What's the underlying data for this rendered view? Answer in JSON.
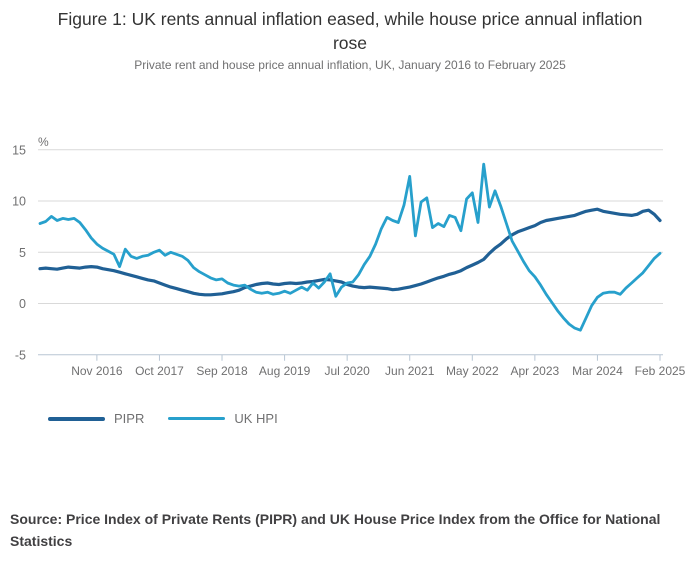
{
  "figure": {
    "title": "Figure 1: UK rents annual inflation eased, while house price annual inflation rose",
    "subtitle": "Private rent and house price annual inflation, UK, January 2016 to February 2025",
    "source": "Source: Price Index of Private Rents (PIPR) and UK House Price Index from the Office for National Statistics"
  },
  "chart_data": {
    "type": "line",
    "title": "Figure 1: UK rents annual inflation eased, while house price annual inflation rose",
    "subtitle": "Private rent and house price annual inflation, UK, January 2016 to February 2025",
    "unit_label": "%",
    "x_start": "Jan 2016",
    "x_end": "Feb 2025",
    "x_tick_labels": [
      "Nov 2016",
      "Oct 2017",
      "Sep 2018",
      "Aug 2019",
      "Jul 2020",
      "Jun 2021",
      "May 2022",
      "Apr 2023",
      "Mar 2024",
      "Feb 2025"
    ],
    "x_tick_month_indices": [
      10,
      21,
      32,
      43,
      54,
      65,
      76,
      87,
      98,
      109
    ],
    "y_ticks": [
      15,
      10,
      5,
      0,
      -5
    ],
    "ylim": [
      -5,
      15
    ],
    "grid": "horizontal",
    "gridline_color": "#d9d9d9",
    "axis_line_color": "#b8c6d4",
    "axis_text_color": "#707071",
    "legend_position": "bottom-left",
    "series": [
      {
        "name": "PIPR",
        "color": "#206095",
        "values": [
          3.4,
          3.45,
          3.4,
          3.35,
          3.45,
          3.55,
          3.5,
          3.45,
          3.55,
          3.6,
          3.55,
          3.4,
          3.3,
          3.2,
          3.05,
          2.9,
          2.75,
          2.6,
          2.45,
          2.3,
          2.2,
          2.0,
          1.8,
          1.6,
          1.45,
          1.3,
          1.15,
          1.0,
          0.9,
          0.85,
          0.85,
          0.9,
          0.95,
          1.05,
          1.15,
          1.3,
          1.55,
          1.7,
          1.85,
          1.95,
          2.0,
          1.9,
          1.85,
          1.95,
          2.0,
          1.95,
          2.0,
          2.1,
          2.15,
          2.25,
          2.35,
          2.3,
          2.2,
          2.1,
          1.85,
          1.7,
          1.6,
          1.55,
          1.6,
          1.55,
          1.5,
          1.45,
          1.35,
          1.4,
          1.5,
          1.6,
          1.75,
          1.9,
          2.1,
          2.3,
          2.5,
          2.65,
          2.85,
          3.0,
          3.2,
          3.5,
          3.75,
          4.0,
          4.3,
          4.9,
          5.4,
          5.8,
          6.3,
          6.7,
          7.0,
          7.2,
          7.4,
          7.6,
          7.9,
          8.1,
          8.2,
          8.3,
          8.4,
          8.5,
          8.6,
          8.8,
          9.0,
          9.1,
          9.2,
          9.0,
          8.9,
          8.8,
          8.7,
          8.65,
          8.6,
          8.7,
          9.0,
          9.1,
          8.7,
          8.1
        ]
      },
      {
        "name": "UK HPI",
        "color": "#27a0cc",
        "values": [
          7.8,
          8.0,
          8.5,
          8.1,
          8.3,
          8.2,
          8.3,
          7.9,
          7.2,
          6.4,
          5.8,
          5.4,
          5.1,
          4.8,
          3.6,
          5.3,
          4.6,
          4.4,
          4.6,
          4.7,
          5.0,
          5.2,
          4.7,
          5.0,
          4.8,
          4.6,
          4.2,
          3.5,
          3.1,
          2.8,
          2.5,
          2.3,
          2.4,
          2.0,
          1.8,
          1.7,
          1.8,
          1.4,
          1.1,
          1.0,
          1.1,
          0.9,
          1.0,
          1.2,
          1.0,
          1.3,
          1.6,
          1.3,
          2.0,
          1.5,
          2.1,
          2.9,
          0.7,
          1.6,
          2.0,
          2.1,
          2.8,
          3.8,
          4.6,
          5.8,
          7.3,
          8.4,
          8.1,
          7.9,
          9.6,
          12.4,
          6.6,
          9.9,
          10.3,
          7.4,
          7.8,
          7.5,
          8.6,
          8.4,
          7.1,
          10.2,
          10.8,
          7.9,
          13.6,
          9.4,
          11.0,
          9.5,
          7.8,
          6.1,
          5.1,
          4.1,
          3.2,
          2.6,
          1.8,
          0.9,
          0.1,
          -0.7,
          -1.4,
          -2.0,
          -2.4,
          -2.6,
          -1.4,
          -0.2,
          0.6,
          1.0,
          1.1,
          1.1,
          0.9,
          1.5,
          2.0,
          2.5,
          3.0,
          3.7,
          4.4,
          4.9
        ]
      }
    ]
  }
}
